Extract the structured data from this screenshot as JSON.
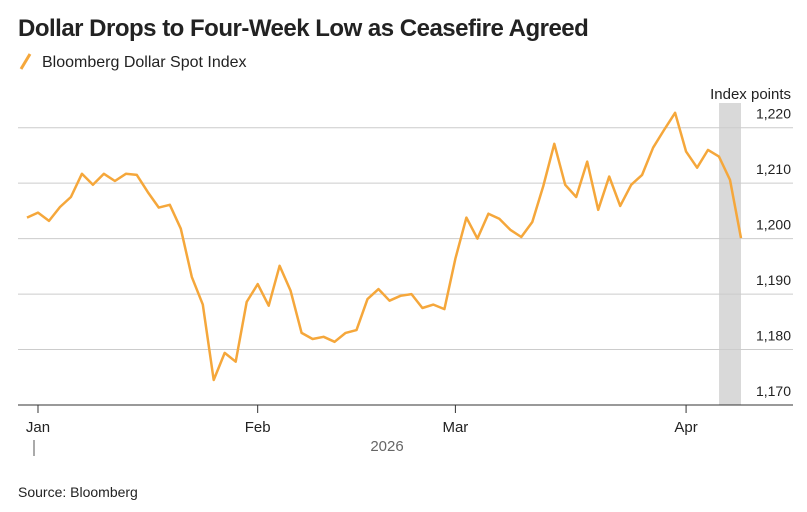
{
  "chart_data": {
    "type": "line",
    "title": "Dollar Drops to Four-Week Low as Ceasefire Agreed",
    "y_label": "Index points",
    "x_label": "2026",
    "source": "Source: Bloomberg",
    "categories": [
      null,
      "Jan",
      null,
      null,
      null,
      null,
      null,
      null,
      null,
      null,
      null,
      null,
      null,
      null,
      null,
      null,
      null,
      null,
      null,
      null,
      null,
      "Feb",
      null,
      null,
      null,
      null,
      null,
      null,
      null,
      null,
      null,
      null,
      null,
      null,
      null,
      null,
      null,
      null,
      null,
      "Mar",
      null,
      null,
      null,
      null,
      null,
      null,
      null,
      null,
      null,
      null,
      null,
      null,
      null,
      null,
      null,
      null,
      null,
      null,
      null,
      null,
      "Apr",
      null,
      null,
      null,
      null,
      null
    ],
    "series": [
      {
        "name": "Bloomberg Dollar Spot Index",
        "color": "#f5a73b",
        "values": [
          1203.8,
          1204.7,
          1203.2,
          1205.7,
          1207.5,
          1211.7,
          1209.7,
          1211.7,
          1210.4,
          1211.7,
          1211.5,
          1208.4,
          1205.6,
          1206.1,
          1201.8,
          1193.1,
          1188.1,
          1174.5,
          1179.4,
          1177.8,
          1188.6,
          1191.8,
          1187.9,
          1195.1,
          1190.6,
          1183.0,
          1181.9,
          1182.3,
          1181.4,
          1183.0,
          1183.5,
          1189.1,
          1190.9,
          1188.8,
          1189.7,
          1190.0,
          1187.5,
          1188.1,
          1187.3,
          1196.4,
          1203.8,
          1200.0,
          1204.5,
          1203.6,
          1201.6,
          1200.3,
          1203.0,
          1209.5,
          1217.1,
          1209.7,
          1207.5,
          1213.9,
          1205.2,
          1211.2,
          1205.9,
          1209.7,
          1211.5,
          1216.4,
          1219.6,
          1222.7,
          1215.7,
          1212.8,
          1216.0,
          1214.8,
          1210.6,
          1200.1
        ]
      }
    ],
    "ylim": [
      1170,
      1225
    ],
    "yticks": [
      {
        "value": 1170,
        "label": "1,170"
      },
      {
        "value": 1180,
        "label": "1,180"
      },
      {
        "value": 1190,
        "label": "1,190"
      },
      {
        "value": 1200,
        "label": "1,200"
      },
      {
        "value": 1210,
        "label": "1,210"
      },
      {
        "value": 1220,
        "label": "1,220"
      }
    ],
    "grid": true
  }
}
